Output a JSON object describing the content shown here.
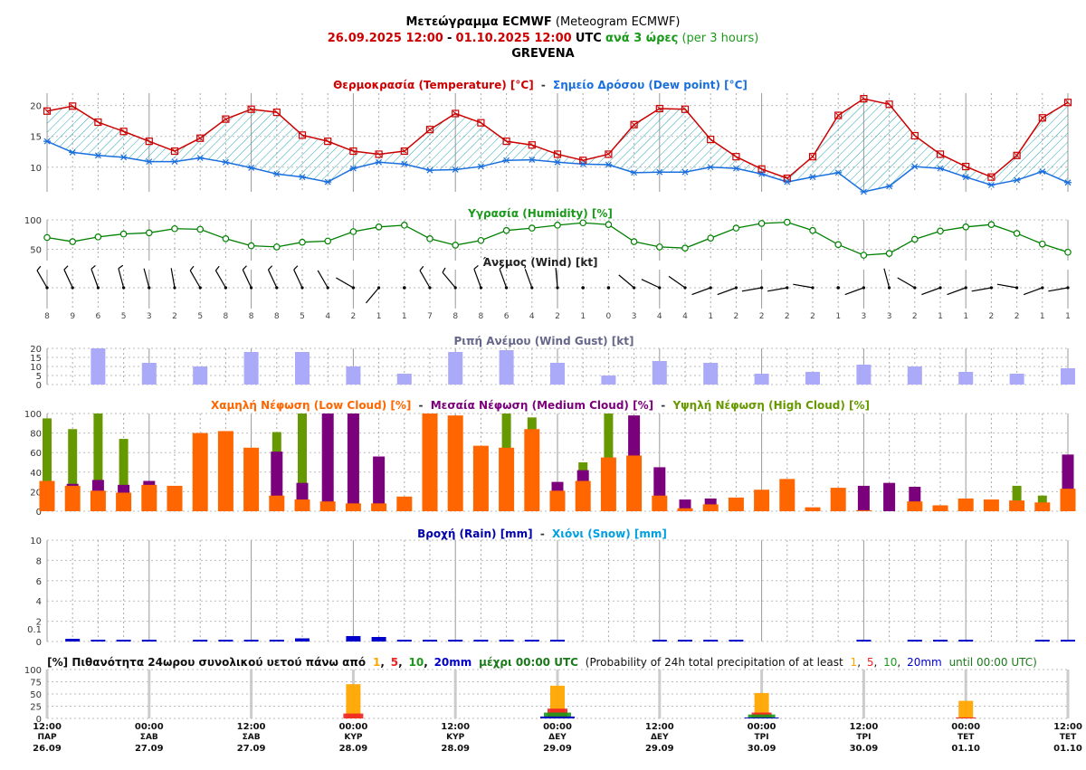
{
  "header": {
    "title_bold": "Μετεώγραμμα ECMWF",
    "title_normal": "(Meteogram ECMWF)",
    "period_from": "26.09.2025 12:00",
    "period_dash": "-",
    "period_to": "01.10.2025 12:00",
    "period_utc": "UTC",
    "period_step": "ανά 3 ώρες",
    "period_step_en": "(per 3 hours)",
    "location": "GREVENA"
  },
  "panels": {
    "temp": {
      "title_a": "Θερμοκρασία (Temperature) [°C]",
      "sep": "-",
      "title_b": "Σημείο Δρόσου (Dew point) [°C]"
    },
    "humidity": {
      "title": "Υγρασία (Humidity) [%]"
    },
    "wind": {
      "title": "Άνεμος (Wind) [kt]"
    },
    "gust": {
      "title": "Ριπή Ανέμου (Wind Gust) [kt]"
    },
    "cloud": {
      "title_low": "Χαμηλή Νέφωση (Low Cloud) [%]",
      "sep1": "-",
      "title_med": "Μεσαία Νέφωση (Medium Cloud) [%]",
      "sep2": "-",
      "title_high": "Υψηλή Νέφωση (High Cloud) [%]"
    },
    "rain": {
      "title_rain": "Βροχή (Rain) [mm]",
      "sep": "-",
      "title_snow": "Χιόνι (Snow) [mm]"
    },
    "prob": {
      "title_gr_a": "[%] Πιθανότητα 24ωρου συνολικού υετού πάνω από",
      "t1": "1",
      "c1": ",",
      "t5": "5",
      "c2": ",",
      "t10": "10",
      "c3": ",",
      "t20": "20mm",
      "title_gr_b": "μέχρι 00:00 UTC",
      "title_en_a": "(Probability of 24h total precipitation of at least",
      "title_en_b": "until 00:00 UTC)"
    }
  },
  "colors": {
    "temperature": "#cc0000",
    "dewpoint": "#1a6fdf",
    "humidity": "#008000",
    "gust": "#aaaaf8",
    "low_cloud": "#ff6600",
    "medium_cloud": "#7b007b",
    "high_cloud": "#669900",
    "rain": "#0000cc",
    "snow": "#00a0e0",
    "p1": "#ffa500",
    "p5": "#ee2222",
    "p10": "#1a9a1a",
    "p20": "#0000cc"
  },
  "chart_data": [
    {
      "type": "line",
      "title": "Θερμοκρασία (Temperature) [°C] - Σημείο Δρόσου (Dew point) [°C]",
      "x": [
        "26.09 12:00",
        "26.09 15:00",
        "26.09 18:00",
        "26.09 21:00",
        "27.09 00:00",
        "27.09 03:00",
        "27.09 06:00",
        "27.09 09:00",
        "27.09 12:00",
        "27.09 15:00",
        "27.09 18:00",
        "27.09 21:00",
        "28.09 00:00",
        "28.09 03:00",
        "28.09 06:00",
        "28.09 09:00",
        "28.09 12:00",
        "28.09 15:00",
        "28.09 18:00",
        "28.09 21:00",
        "29.09 00:00",
        "29.09 03:00",
        "29.09 06:00",
        "29.09 09:00",
        "29.09 12:00",
        "29.09 15:00",
        "29.09 18:00",
        "29.09 21:00",
        "30.09 00:00",
        "30.09 03:00",
        "30.09 06:00",
        "30.09 09:00",
        "30.09 12:00",
        "30.09 15:00",
        "30.09 18:00",
        "30.09 21:00",
        "01.10 00:00",
        "01.10 03:00",
        "01.10 06:00",
        "01.10 09:00",
        "01.10 12:00"
      ],
      "series": [
        {
          "name": "Θερμοκρασία (Temperature) [°C]",
          "values": [
            19.1,
            19.9,
            17.3,
            15.8,
            14.2,
            12.6,
            14.7,
            17.8,
            19.4,
            18.9,
            15.2,
            14.2,
            12.6,
            12.1,
            12.6,
            16.1,
            18.7,
            17.2,
            14.2,
            13.6,
            12.1,
            11.1,
            12.1,
            16.9,
            19.5,
            19.4,
            14.5,
            11.7,
            9.7,
            8.2,
            11.7,
            18.4,
            21.1,
            20.2,
            15.1,
            12.1,
            10.1,
            8.4,
            11.9,
            18.0,
            20.5
          ]
        },
        {
          "name": "Σημείο Δρόσου (Dew point) [°C]",
          "values": [
            14.2,
            12.4,
            11.9,
            11.6,
            10.9,
            10.9,
            11.5,
            10.8,
            9.9,
            8.9,
            8.4,
            7.6,
            9.8,
            10.8,
            10.5,
            9.5,
            9.6,
            10.1,
            11.1,
            11.2,
            10.8,
            10.5,
            10.4,
            9.1,
            9.2,
            9.2,
            10.0,
            9.8,
            8.9,
            7.6,
            8.4,
            9.1,
            6.0,
            6.9,
            10.1,
            9.8,
            8.4,
            7.1,
            7.9,
            9.3,
            7.5
          ]
        }
      ],
      "ylim": [
        6,
        22
      ]
    },
    {
      "type": "line",
      "title": "Υγρασία (Humidity) [%]",
      "series": [
        {
          "name": "Υγρασία (Humidity) [%]",
          "values": [
            70,
            63,
            71,
            76,
            78,
            85,
            84,
            68,
            56,
            54,
            62,
            64,
            80,
            88,
            91,
            68,
            57,
            65,
            82,
            86,
            91,
            95,
            92,
            63,
            54,
            52,
            69,
            86,
            94,
            96,
            82,
            58,
            40,
            43,
            67,
            81,
            88,
            92,
            77,
            59,
            45
          ]
        }
      ],
      "ylim": [
        40,
        100
      ]
    },
    {
      "type": "table",
      "title": "Άνεμος (Wind) [kt]",
      "speed_kt": [
        8,
        9,
        6,
        5,
        3,
        2,
        5,
        8,
        8,
        8,
        5,
        4,
        2,
        1,
        1,
        7,
        8,
        8,
        6,
        4,
        2,
        1,
        0,
        3,
        4,
        4,
        1,
        2,
        2,
        2,
        2,
        1,
        3,
        3,
        2,
        1,
        1,
        2,
        2,
        1,
        1
      ],
      "direction_deg": [
        330,
        335,
        340,
        345,
        345,
        350,
        330,
        330,
        335,
        335,
        335,
        330,
        300,
        220,
        0,
        330,
        320,
        340,
        340,
        340,
        355,
        0,
        0,
        310,
        295,
        305,
        250,
        250,
        260,
        260,
        280,
        0,
        250,
        345,
        300,
        250,
        250,
        260,
        280,
        250,
        260
      ]
    },
    {
      "type": "bar",
      "title": "Ριπή Ανέμου (Wind Gust) [kt]",
      "x": [
        "26.09 18:00",
        "27.09 00:00",
        "27.09 06:00",
        "27.09 12:00",
        "27.09 18:00",
        "28.09 00:00",
        "28.09 06:00",
        "28.09 12:00",
        "28.09 18:00",
        "29.09 00:00",
        "29.09 06:00",
        "29.09 12:00",
        "29.09 18:00",
        "30.09 00:00",
        "30.09 06:00",
        "30.09 12:00",
        "30.09 18:00",
        "01.10 00:00",
        "01.10 06:00",
        "01.10 12:00"
      ],
      "values": [
        20,
        12,
        10,
        18,
        18,
        10,
        6,
        18,
        19,
        12,
        5,
        13,
        12,
        6,
        7,
        11,
        10,
        7,
        6,
        9
      ],
      "ylim": [
        0,
        20
      ]
    },
    {
      "type": "bar",
      "title": "Χαμηλή Νέφωση (Low Cloud) [%] - Μεσαία Νέφωση (Medium Cloud) [%] - Υψηλή Νέφωση (High Cloud) [%]",
      "series": [
        {
          "name": "Υψηλή Νέφωση (High Cloud) [%]",
          "values": [
            95,
            84,
            100,
            74,
            0,
            0,
            0,
            0,
            0,
            81,
            100,
            0,
            0,
            0,
            0,
            0,
            0,
            0,
            100,
            96,
            0,
            50,
            100,
            0,
            0,
            0,
            0,
            0,
            0,
            0,
            0,
            0,
            0,
            0,
            0,
            0,
            0,
            0,
            26,
            16,
            0
          ]
        },
        {
          "name": "Μεσαία Νέφωση (Medium Cloud) [%]",
          "values": [
            0,
            28,
            32,
            27,
            31,
            0,
            0,
            0,
            0,
            61,
            29,
            100,
            100,
            56,
            0,
            0,
            0,
            0,
            0,
            0,
            30,
            42,
            0,
            98,
            45,
            12,
            13,
            0,
            0,
            0,
            0,
            0,
            26,
            29,
            25,
            6,
            0,
            0,
            0,
            0,
            58
          ]
        },
        {
          "name": "Χαμηλή Νέφωση (Low Cloud) [%]",
          "values": [
            31,
            26,
            21,
            19,
            27,
            26,
            80,
            82,
            65,
            16,
            12,
            10,
            8,
            8,
            15,
            100,
            98,
            67,
            65,
            84,
            21,
            31,
            55,
            57,
            16,
            3,
            7,
            14,
            22,
            33,
            4,
            24,
            1,
            0,
            10,
            6,
            13,
            12,
            11,
            9,
            23
          ]
        }
      ],
      "ylim": [
        0,
        100
      ]
    },
    {
      "type": "bar",
      "title": "Βροχή (Rain) [mm] - Χιόνι (Snow) [mm]",
      "series": [
        {
          "name": "Βροχή (Rain) [mm]",
          "values": [
            0,
            0.3,
            0.1,
            0.1,
            0.1,
            0,
            0.1,
            0.2,
            0.1,
            0.1,
            0.35,
            0,
            0.6,
            0.5,
            0.1,
            0.05,
            0.15,
            0.1,
            0.1,
            0.05,
            0.05,
            0,
            0,
            0,
            0.1,
            0.15,
            0.1,
            0.1,
            0,
            0,
            0,
            0,
            0.1,
            0,
            0.15,
            0.1,
            0.1,
            0,
            0,
            0.1,
            0.1
          ]
        },
        {
          "name": "Χιόνι (Snow) [mm]",
          "values": [
            0,
            0,
            0,
            0,
            0,
            0,
            0,
            0,
            0,
            0,
            0,
            0,
            0,
            0,
            0,
            0,
            0,
            0,
            0,
            0,
            0,
            0,
            0,
            0,
            0,
            0,
            0,
            0,
            0,
            0,
            0,
            0,
            0,
            0,
            0,
            0,
            0,
            0,
            0,
            0,
            0
          ]
        }
      ],
      "ylim": [
        0,
        10
      ]
    },
    {
      "type": "bar",
      "title": "[%] Πιθανότητα 24ωρου συνολικού υετού πάνω από 1, 5, 10, 20mm μέχρι 00:00 UTC (Probability of 24h total precipitation of at least 1, 5, 10, 20mm until 00:00 UTC)",
      "categories": [
        "28.09 00:00",
        "29.09 00:00",
        "30.09 00:00",
        "01.10 00:00"
      ],
      "series": [
        {
          "name": "1",
          "values": [
            70,
            67,
            52,
            36
          ]
        },
        {
          "name": "5",
          "values": [
            10,
            20,
            12,
            2
          ]
        },
        {
          "name": "10",
          "values": [
            0,
            12,
            8,
            0
          ]
        },
        {
          "name": "20mm",
          "values": [
            0,
            4,
            2,
            0
          ]
        }
      ],
      "ylim": [
        0,
        100
      ]
    }
  ],
  "axes": {
    "temp_ticks": [
      "10",
      "15",
      "20"
    ],
    "humidity_ticks": [
      "50",
      "100"
    ],
    "gust_ticks": [
      "0",
      "5",
      "10",
      "15",
      "20"
    ],
    "cloud_ticks": [
      "0",
      "20",
      "40",
      "60",
      "80",
      "100"
    ],
    "rain_ticks": [
      "0",
      "0.1",
      "2",
      "4",
      "6",
      "8",
      "10"
    ],
    "prob_ticks": [
      "0",
      "25",
      "50",
      "75",
      "100"
    ],
    "time_labels": [
      "12:00",
      "00:00",
      "12:00",
      "00:00",
      "12:00",
      "00:00",
      "12:00",
      "00:00",
      "12:00",
      "00:00",
      "12:00"
    ],
    "day_labels": [
      "ΠΑΡ",
      "ΣΑΒ",
      "ΣΑΒ",
      "ΚΥΡ",
      "ΚΥΡ",
      "ΔΕΥ",
      "ΔΕΥ",
      "ΤΡΙ",
      "ΤΡΙ",
      "ΤΕΤ",
      "ΤΕΤ"
    ],
    "date_labels": [
      "26.09",
      "27.09",
      "27.09",
      "28.09",
      "28.09",
      "29.09",
      "29.09",
      "30.09",
      "30.09",
      "01.10",
      "01.10"
    ]
  }
}
